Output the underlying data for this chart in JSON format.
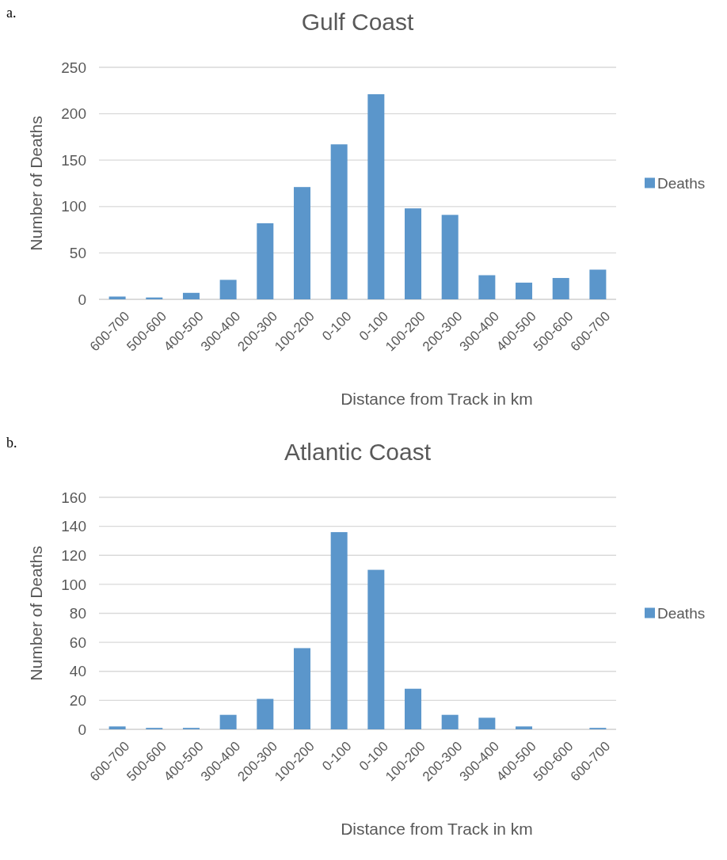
{
  "chart_data": [
    {
      "type": "bar",
      "title": "Gulf Coast",
      "xlabel": "Distance from Track in km",
      "ylabel": "Number of Deaths",
      "annotations": [
        "a."
      ],
      "categories": [
        "600-700",
        "500-600",
        "400-500",
        "300-400",
        "200-300",
        "100-200",
        "0-100",
        "0-100",
        "100-200",
        "200-300",
        "300-400",
        "400-500",
        "500-600",
        "600-700"
      ],
      "series": [
        {
          "name": "Deaths",
          "color": "#5b96cb",
          "values": [
            3,
            2,
            7,
            21,
            82,
            121,
            167,
            221,
            98,
            91,
            26,
            18,
            23,
            32
          ]
        }
      ],
      "ylim": [
        0,
        250
      ],
      "yticks": [
        0,
        50,
        100,
        150,
        200,
        250
      ],
      "grid": "y",
      "legend": "right"
    },
    {
      "type": "bar",
      "title": "Atlantic Coast",
      "xlabel": "Distance from Track in km",
      "ylabel": "Number of Deaths",
      "annotations": [
        "b."
      ],
      "categories": [
        "600-700",
        "500-600",
        "400-500",
        "300-400",
        "200-300",
        "100-200",
        "0-100",
        "0-100",
        "100-200",
        "200-300",
        "300-400",
        "400-500",
        "500-600",
        "600-700"
      ],
      "series": [
        {
          "name": "Deaths",
          "color": "#5b96cb",
          "values": [
            2,
            1,
            1,
            10,
            21,
            56,
            136,
            110,
            28,
            10,
            8,
            2,
            0,
            1
          ]
        }
      ],
      "ylim": [
        0,
        160
      ],
      "yticks": [
        0,
        20,
        40,
        60,
        80,
        100,
        120,
        140,
        160
      ],
      "grid": "y",
      "legend": "right"
    }
  ]
}
